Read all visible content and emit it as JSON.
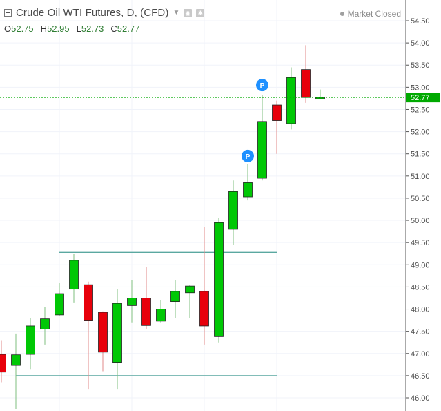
{
  "header": {
    "title": "Crude Oil WTI Futures, D, (CFD)",
    "ohlc": [
      {
        "label": "O",
        "value": "52.75"
      },
      {
        "label": "H",
        "value": "52.95"
      },
      {
        "label": "L",
        "value": "52.73"
      },
      {
        "label": "C",
        "value": "52.77"
      }
    ],
    "market_status": "Market Closed"
  },
  "colors": {
    "up": "#00c805",
    "down": "#e8000b",
    "wick": "#9a9a9a",
    "hline": "#5aa8a0",
    "last_price": "#00a900",
    "marker": "#1e90ff"
  },
  "chart_data": {
    "type": "candlestick",
    "ylim": [
      45.8,
      54.8
    ],
    "y_ticks": [
      "54.50",
      "54.00",
      "53.50",
      "53.00",
      "52.50",
      "52.00",
      "51.50",
      "51.00",
      "50.50",
      "50.00",
      "49.50",
      "49.00",
      "48.50",
      "48.00",
      "47.50",
      "47.00",
      "46.50",
      "46.00"
    ],
    "last_price": {
      "value": 52.77,
      "label": "52.77"
    },
    "horizontal_lines": [
      {
        "value": 49.28,
        "x_from": 4,
        "x_to": 19
      },
      {
        "value": 46.5,
        "x_from": 1,
        "x_to": 19
      }
    ],
    "candles": [
      {
        "o": 46.98,
        "h": 47.3,
        "l": 46.35,
        "c": 46.58
      },
      {
        "o": 46.73,
        "h": 47.45,
        "l": 45.75,
        "c": 46.97
      },
      {
        "o": 46.98,
        "h": 47.8,
        "l": 46.65,
        "c": 47.62
      },
      {
        "o": 47.55,
        "h": 48.05,
        "l": 47.2,
        "c": 47.78
      },
      {
        "o": 47.87,
        "h": 48.6,
        "l": 47.85,
        "c": 48.35
      },
      {
        "o": 48.45,
        "h": 49.25,
        "l": 48.15,
        "c": 49.1
      },
      {
        "o": 48.55,
        "h": 48.62,
        "l": 46.2,
        "c": 47.75
      },
      {
        "o": 47.93,
        "h": 47.95,
        "l": 46.6,
        "c": 47.03
      },
      {
        "o": 46.8,
        "h": 48.45,
        "l": 46.2,
        "c": 48.13
      },
      {
        "o": 48.08,
        "h": 48.65,
        "l": 47.7,
        "c": 48.25
      },
      {
        "o": 48.25,
        "h": 48.95,
        "l": 47.55,
        "c": 47.63
      },
      {
        "o": 47.73,
        "h": 48.2,
        "l": 47.7,
        "c": 48.0
      },
      {
        "o": 48.17,
        "h": 48.65,
        "l": 47.8,
        "c": 48.4
      },
      {
        "o": 48.37,
        "h": 48.55,
        "l": 47.8,
        "c": 48.52
      },
      {
        "o": 48.4,
        "h": 49.85,
        "l": 47.2,
        "c": 47.62
      },
      {
        "o": 47.38,
        "h": 50.05,
        "l": 47.25,
        "c": 49.95
      },
      {
        "o": 49.8,
        "h": 50.9,
        "l": 49.45,
        "c": 50.65
      },
      {
        "o": 50.53,
        "h": 51.27,
        "l": 50.45,
        "c": 50.85
      },
      {
        "o": 50.95,
        "h": 52.83,
        "l": 50.9,
        "c": 52.23
      },
      {
        "o": 52.6,
        "h": 52.7,
        "l": 51.5,
        "c": 52.25
      },
      {
        "o": 52.18,
        "h": 53.45,
        "l": 52.05,
        "c": 53.22
      },
      {
        "o": 53.4,
        "h": 53.95,
        "l": 52.65,
        "c": 52.77
      },
      {
        "o": 52.75,
        "h": 52.95,
        "l": 52.73,
        "c": 52.77
      }
    ],
    "markers": [
      {
        "candle": 17,
        "value": 51.45,
        "label": "P"
      },
      {
        "candle": 18,
        "value": 53.05,
        "label": "P"
      }
    ]
  }
}
